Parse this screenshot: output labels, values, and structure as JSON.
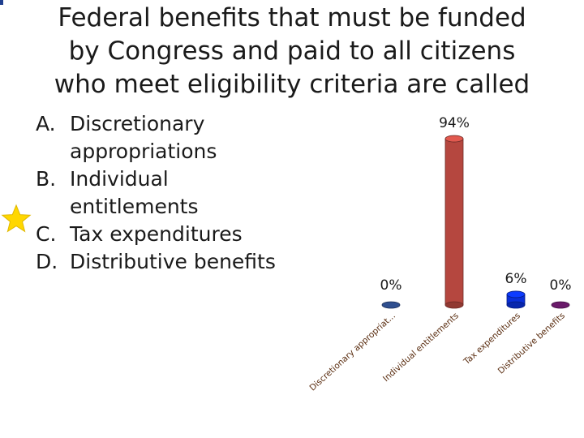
{
  "title_lines": [
    "Federal benefits that must be funded",
    "by Congress and paid to all citizens",
    "who meet eligibility criteria are called"
  ],
  "options": [
    {
      "letter": "A.",
      "lines": [
        "Discretionary",
        "appropriations"
      ]
    },
    {
      "letter": "B.",
      "lines": [
        "Individual",
        "entitlements"
      ],
      "starred": true
    },
    {
      "letter": "C.",
      "lines": [
        "Tax expenditures"
      ]
    },
    {
      "letter": "D.",
      "lines": [
        "Distributive benefits"
      ]
    }
  ],
  "colors": {
    "star": "#ffd700",
    "corner_mark": "#1f3f8f"
  },
  "chart_data": {
    "type": "bar",
    "categories": [
      "Discretionary appropriat...",
      "Individual entitlements",
      "Tax expenditures",
      "Distributive benefits"
    ],
    "values": [
      0,
      94,
      6,
      0
    ],
    "value_labels": [
      "0%",
      "94%",
      "6%",
      "0%"
    ],
    "colors": [
      "#2f4f8f",
      "#b5473f",
      "#0a2fd8",
      "#6a1a6a"
    ],
    "ylim": [
      0,
      100
    ],
    "grid": false,
    "legend": "none",
    "style": "3d-cylinder"
  }
}
